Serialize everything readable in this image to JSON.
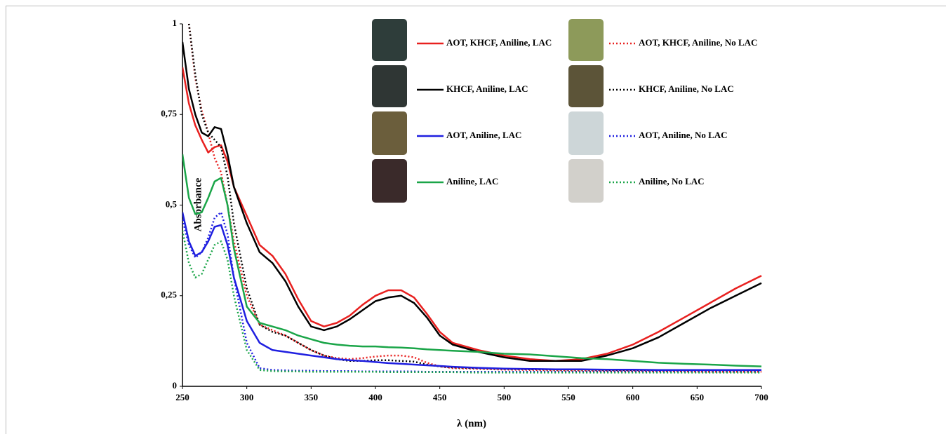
{
  "chart_data": {
    "type": "line",
    "xlabel": "λ (nm)",
    "ylabel": "Absorbance",
    "x": [
      250,
      255,
      260,
      265,
      270,
      275,
      280,
      285,
      290,
      300,
      310,
      320,
      330,
      340,
      350,
      360,
      370,
      380,
      390,
      400,
      410,
      420,
      430,
      440,
      450,
      460,
      480,
      500,
      520,
      540,
      560,
      580,
      600,
      620,
      640,
      660,
      680,
      700
    ],
    "xlim": [
      250,
      700
    ],
    "xticks": [
      250,
      300,
      350,
      400,
      450,
      500,
      550,
      600,
      650,
      700
    ],
    "ylim": [
      0,
      1
    ],
    "yticks": [
      0,
      {
        "value": 0.25,
        "label": "0,25"
      },
      {
        "value": 0.5,
        "label": "0,5"
      },
      {
        "value": 0.75,
        "label": "0,75"
      },
      1
    ],
    "series": [
      {
        "name": "AOT, KHCF, Aniline, LAC",
        "color": "#e8201f",
        "style": "solid",
        "values": [
          0.88,
          0.78,
          0.72,
          0.68,
          0.645,
          0.66,
          0.665,
          0.62,
          0.55,
          0.47,
          0.39,
          0.36,
          0.31,
          0.24,
          0.18,
          0.165,
          0.175,
          0.195,
          0.225,
          0.25,
          0.265,
          0.265,
          0.245,
          0.2,
          0.15,
          0.12,
          0.1,
          0.085,
          0.075,
          0.07,
          0.075,
          0.09,
          0.115,
          0.15,
          0.19,
          0.23,
          0.27,
          0.305
        ]
      },
      {
        "name": "AOT, KHCF, Aniline, No LAC",
        "color": "#e8201f",
        "style": "dotted",
        "values": [
          null,
          1.0,
          0.85,
          0.76,
          0.7,
          0.63,
          0.59,
          0.5,
          0.4,
          0.25,
          0.17,
          0.155,
          0.14,
          0.12,
          0.1,
          0.085,
          0.078,
          0.075,
          0.078,
          0.082,
          0.085,
          0.085,
          0.08,
          0.065,
          0.055,
          0.05,
          0.048,
          0.046,
          0.045,
          0.044,
          0.043,
          0.042,
          0.042,
          0.041,
          0.041,
          0.04,
          0.04,
          0.04
        ]
      },
      {
        "name": "KHCF, Aniline, LAC",
        "color": "#000000",
        "style": "solid",
        "values": [
          0.95,
          0.82,
          0.75,
          0.7,
          0.69,
          0.715,
          0.71,
          0.64,
          0.55,
          0.45,
          0.37,
          0.34,
          0.29,
          0.22,
          0.165,
          0.155,
          0.165,
          0.185,
          0.21,
          0.235,
          0.245,
          0.25,
          0.23,
          0.19,
          0.14,
          0.115,
          0.095,
          0.08,
          0.07,
          0.07,
          0.07,
          0.085,
          0.105,
          0.135,
          0.175,
          0.215,
          0.25,
          0.285
        ]
      },
      {
        "name": "KHCF, Aniline, No LAC",
        "color": "#000000",
        "style": "dotted",
        "values": [
          null,
          1.0,
          0.86,
          0.75,
          0.7,
          0.68,
          0.66,
          0.58,
          0.45,
          0.27,
          0.17,
          0.15,
          0.14,
          0.12,
          0.1,
          0.085,
          0.075,
          0.07,
          0.07,
          0.072,
          0.072,
          0.07,
          0.068,
          0.06,
          0.055,
          0.052,
          0.05,
          0.048,
          0.047,
          0.046,
          0.046,
          0.045,
          0.045,
          0.045,
          0.045,
          0.045,
          0.045,
          0.045
        ]
      },
      {
        "name": "AOT, Aniline, LAC",
        "color": "#1f1fe0",
        "style": "solid",
        "values": [
          0.48,
          0.4,
          0.36,
          0.37,
          0.4,
          0.44,
          0.445,
          0.39,
          0.3,
          0.18,
          0.12,
          0.1,
          0.095,
          0.09,
          0.085,
          0.08,
          0.075,
          0.072,
          0.07,
          0.067,
          0.064,
          0.062,
          0.06,
          0.058,
          0.056,
          0.054,
          0.051,
          0.049,
          0.048,
          0.047,
          0.047,
          0.046,
          0.046,
          0.045,
          0.045,
          0.045,
          0.045,
          0.045
        ]
      },
      {
        "name": "AOT, Aniline, No LAC",
        "color": "#1f1fe0",
        "style": "dotted",
        "values": [
          0.46,
          0.39,
          0.355,
          0.37,
          0.41,
          0.465,
          0.48,
          0.42,
          0.3,
          0.12,
          0.05,
          0.045,
          0.044,
          0.043,
          0.043,
          0.042,
          0.042,
          0.042,
          0.041,
          0.041,
          0.041,
          0.041,
          0.041,
          0.04,
          0.04,
          0.04,
          0.04,
          0.04,
          0.04,
          0.04,
          0.04,
          0.04,
          0.04,
          0.04,
          0.04,
          0.04,
          0.04,
          0.04
        ]
      },
      {
        "name": "Aniline, LAC",
        "color": "#1aa548",
        "style": "solid",
        "values": [
          0.64,
          0.52,
          0.475,
          0.48,
          0.52,
          0.565,
          0.575,
          0.5,
          0.38,
          0.22,
          0.175,
          0.165,
          0.155,
          0.14,
          0.13,
          0.12,
          0.115,
          0.112,
          0.11,
          0.11,
          0.108,
          0.107,
          0.105,
          0.102,
          0.1,
          0.098,
          0.095,
          0.09,
          0.088,
          0.083,
          0.078,
          0.075,
          0.07,
          0.065,
          0.062,
          0.06,
          0.057,
          0.055
        ]
      },
      {
        "name": "Aniline, No LAC",
        "color": "#1aa548",
        "style": "dotted",
        "values": [
          0.43,
          0.34,
          0.3,
          0.31,
          0.35,
          0.39,
          0.4,
          0.35,
          0.25,
          0.1,
          0.045,
          0.042,
          0.041,
          0.041,
          0.04,
          0.04,
          0.04,
          0.04,
          0.04,
          0.04,
          0.039,
          0.039,
          0.039,
          0.039,
          0.039,
          0.039,
          0.038,
          0.038,
          0.038,
          0.038,
          0.038,
          0.038,
          0.038,
          0.038,
          0.038,
          0.038,
          0.038,
          0.038
        ]
      }
    ]
  }
}
